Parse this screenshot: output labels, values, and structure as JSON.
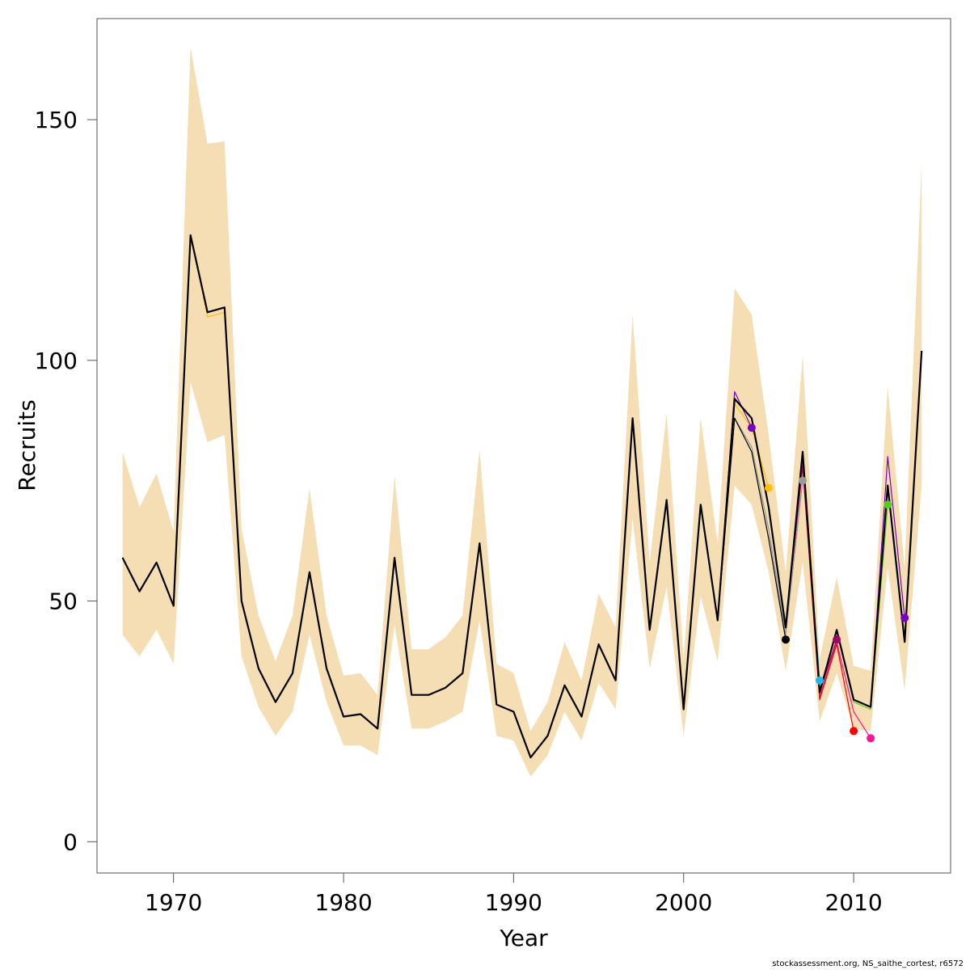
{
  "chart_data": {
    "type": "line",
    "xlabel": "Year",
    "ylabel": "Recruits",
    "xlim": [
      1965.5,
      2015.7
    ],
    "ylim": [
      -6.5,
      171
    ],
    "x_ticks": [
      1970,
      1980,
      1990,
      2000,
      2010
    ],
    "y_ticks": [
      0,
      50,
      100,
      150
    ],
    "band_color": "#f5deb3",
    "x": [
      1967,
      1968,
      1969,
      1970,
      1971,
      1972,
      1973,
      1974,
      1975,
      1976,
      1977,
      1978,
      1979,
      1980,
      1981,
      1982,
      1983,
      1984,
      1985,
      1986,
      1987,
      1988,
      1989,
      1990,
      1991,
      1992,
      1993,
      1994,
      1995,
      1996,
      1997,
      1998,
      1999,
      2000,
      2001,
      2002,
      2003,
      2004,
      2005,
      2006,
      2007,
      2008,
      2009,
      2010,
      2011,
      2012,
      2013,
      2014
    ],
    "confidence_band": {
      "lower": [
        43,
        38.5,
        44,
        37,
        95.5,
        83,
        84.5,
        38.5,
        28,
        22,
        27,
        43,
        29,
        20,
        20,
        18,
        45,
        23.5,
        23.5,
        25,
        27,
        46,
        22,
        21,
        13.5,
        18,
        27,
        21,
        33,
        27.5,
        67,
        36,
        53,
        22,
        51,
        37.5,
        74,
        70,
        56,
        35.5,
        58,
        25,
        35,
        23.5,
        23,
        57,
        31.5,
        74
      ],
      "upper": [
        81,
        69.5,
        76.5,
        64.5,
        165,
        145,
        145.5,
        65,
        47,
        37.5,
        47,
        73.5,
        47,
        34.5,
        35,
        30.5,
        76,
        40,
        40,
        42.5,
        47,
        81.5,
        37,
        35,
        23,
        29,
        41.5,
        33.5,
        51.5,
        44.5,
        109.5,
        58,
        89,
        38,
        88,
        62,
        115,
        109.5,
        84.5,
        56,
        101,
        38,
        55,
        36.5,
        35.5,
        94.5,
        57,
        141
      ]
    },
    "final_run": {
      "name": "",
      "values": [
        59,
        52,
        58,
        49,
        126,
        110,
        111,
        50,
        36,
        29,
        35,
        56,
        36,
        26,
        26.5,
        23.5,
        59,
        30.5,
        30.5,
        32,
        35,
        62,
        28.5,
        27,
        17.5,
        22,
        32.5,
        26,
        41,
        33.5,
        88,
        44,
        71,
        27.5,
        70,
        46,
        92,
        88,
        69.5,
        44.5,
        81,
        31,
        44,
        29.5,
        28,
        74,
        41.5,
        102
      ]
    },
    "retrospective_peels": [
      {
        "terminal_year": 2013,
        "color": "#7b00c4",
        "end_point": 46.5,
        "values": [
          59,
          52,
          58,
          49,
          126,
          110,
          111,
          50,
          36,
          29,
          35,
          56,
          36,
          26,
          26.5,
          23.5,
          59,
          30.5,
          30.5,
          32,
          35,
          62,
          28.5,
          27,
          17.5,
          22,
          32.5,
          26,
          41,
          33.5,
          88,
          44,
          71,
          27.5,
          70,
          46,
          92,
          88,
          69.5,
          44.5,
          81,
          31,
          44,
          29.5,
          28,
          80,
          46.5
        ]
      },
      {
        "terminal_year": 2012,
        "color": "#55cc22",
        "end_point": 70,
        "values": [
          59,
          52,
          58,
          49,
          126,
          110,
          111,
          50,
          36,
          29,
          35,
          56,
          36,
          26,
          26.5,
          23.5,
          59,
          30.5,
          30.5,
          32,
          35,
          62,
          28.5,
          27,
          17.5,
          22,
          32.5,
          26,
          41,
          33.5,
          88,
          44,
          71,
          27.5,
          70,
          46,
          92,
          88,
          69.5,
          44.5,
          81,
          31,
          44,
          29,
          27.5,
          70
        ]
      },
      {
        "terminal_year": 2011,
        "color": "#ff1493",
        "end_point": 21.5,
        "values": [
          59,
          52,
          58,
          49,
          126,
          110,
          111,
          50,
          36,
          29,
          35,
          56,
          36,
          26,
          26.5,
          23.5,
          59,
          30.5,
          30.5,
          32,
          35,
          62,
          28.5,
          27,
          17.5,
          22,
          32.5,
          26,
          41,
          33.5,
          88,
          44,
          71,
          27.5,
          70,
          46,
          92,
          88,
          69.5,
          44.5,
          79,
          30,
          41.5,
          27,
          21.5
        ]
      },
      {
        "terminal_year": 2010,
        "color": "#ff0000",
        "end_point": 23,
        "values": [
          59,
          52,
          58,
          49,
          126,
          110,
          111,
          50,
          36,
          29,
          35,
          56,
          36,
          26,
          26.5,
          23.5,
          59,
          30.5,
          30.5,
          32,
          35,
          62,
          28.5,
          27,
          17.5,
          22,
          32.5,
          26,
          41,
          33.5,
          88,
          44,
          71,
          27.5,
          70,
          46,
          92,
          88,
          69.5,
          44.5,
          78,
          29.5,
          41,
          23
        ]
      },
      {
        "terminal_year": 2009,
        "color": "#a0006a",
        "end_point": 42,
        "values": [
          59,
          52,
          58,
          49,
          126,
          110,
          111,
          50,
          36,
          29,
          35,
          56,
          36,
          26,
          26.5,
          23.5,
          59,
          30.5,
          30.5,
          32,
          35,
          62,
          28.5,
          27,
          17.5,
          22,
          32.5,
          26,
          41,
          33.5,
          88,
          44,
          71,
          27.5,
          70,
          46,
          92,
          88,
          69.5,
          44.5,
          78,
          31,
          42
        ]
      },
      {
        "terminal_year": 2008,
        "color": "#22b8e8",
        "end_point": 33.5,
        "values": [
          59,
          52,
          58,
          49,
          126,
          110,
          111,
          50,
          36,
          29,
          35,
          56,
          36,
          26,
          26.5,
          23.5,
          59,
          30.5,
          30.5,
          32,
          35,
          62,
          28.5,
          27,
          17.5,
          22,
          32.5,
          26,
          41,
          33.5,
          88,
          44,
          71,
          27.5,
          70,
          46,
          92,
          88,
          69.5,
          44.5,
          80,
          33.5
        ]
      },
      {
        "terminal_year": 2007,
        "color": "#999999",
        "end_point": 75,
        "values": [
          59,
          52,
          58,
          49,
          126,
          110,
          111,
          50,
          36,
          29,
          35,
          56,
          36,
          26,
          26.5,
          23.5,
          59,
          30.5,
          30.5,
          32,
          35,
          62,
          28.5,
          27,
          17.5,
          22,
          32.5,
          26,
          41,
          33.5,
          88,
          44,
          71,
          27.5,
          70,
          46,
          88,
          82,
          65,
          43,
          75
        ]
      },
      {
        "terminal_year": 2006,
        "color": "#000000",
        "end_point": 42,
        "values": [
          59,
          52,
          58,
          49,
          126,
          110,
          111,
          50,
          36,
          29,
          35,
          56,
          36,
          26,
          26.5,
          23.5,
          59,
          30.5,
          30.5,
          32,
          35,
          62,
          28.5,
          27,
          17.5,
          22,
          32.5,
          26,
          41,
          33.5,
          88,
          44,
          71,
          27.5,
          70,
          46,
          88,
          81,
          63,
          42
        ]
      },
      {
        "terminal_year": 2005,
        "color": "#ffc000",
        "end_point": 73.5,
        "values": [
          59,
          52,
          58,
          49,
          126,
          109,
          110,
          50,
          36,
          29,
          35,
          56,
          36,
          26,
          26.5,
          23.5,
          59,
          30.5,
          30.5,
          32,
          35,
          62,
          28.5,
          27,
          17.5,
          22,
          32.5,
          26,
          41,
          33.5,
          88,
          44,
          71,
          27.5,
          70,
          46,
          91,
          86,
          73.5
        ]
      },
      {
        "terminal_year": 2004,
        "color": "#7b00c4",
        "end_point": 86,
        "values": [
          59,
          52,
          58,
          49,
          126,
          110,
          111,
          50,
          36,
          29,
          35,
          56,
          36,
          26,
          26.5,
          23.5,
          59,
          30.5,
          30.5,
          32,
          35,
          62,
          28.5,
          27,
          17.5,
          22,
          32.5,
          26,
          41,
          33.5,
          88,
          44,
          71,
          27.5,
          70,
          46,
          93.5,
          86
        ]
      }
    ]
  },
  "footer": {
    "source_text": "stockassessment.org, NS_saithe_cortest, r6572"
  }
}
